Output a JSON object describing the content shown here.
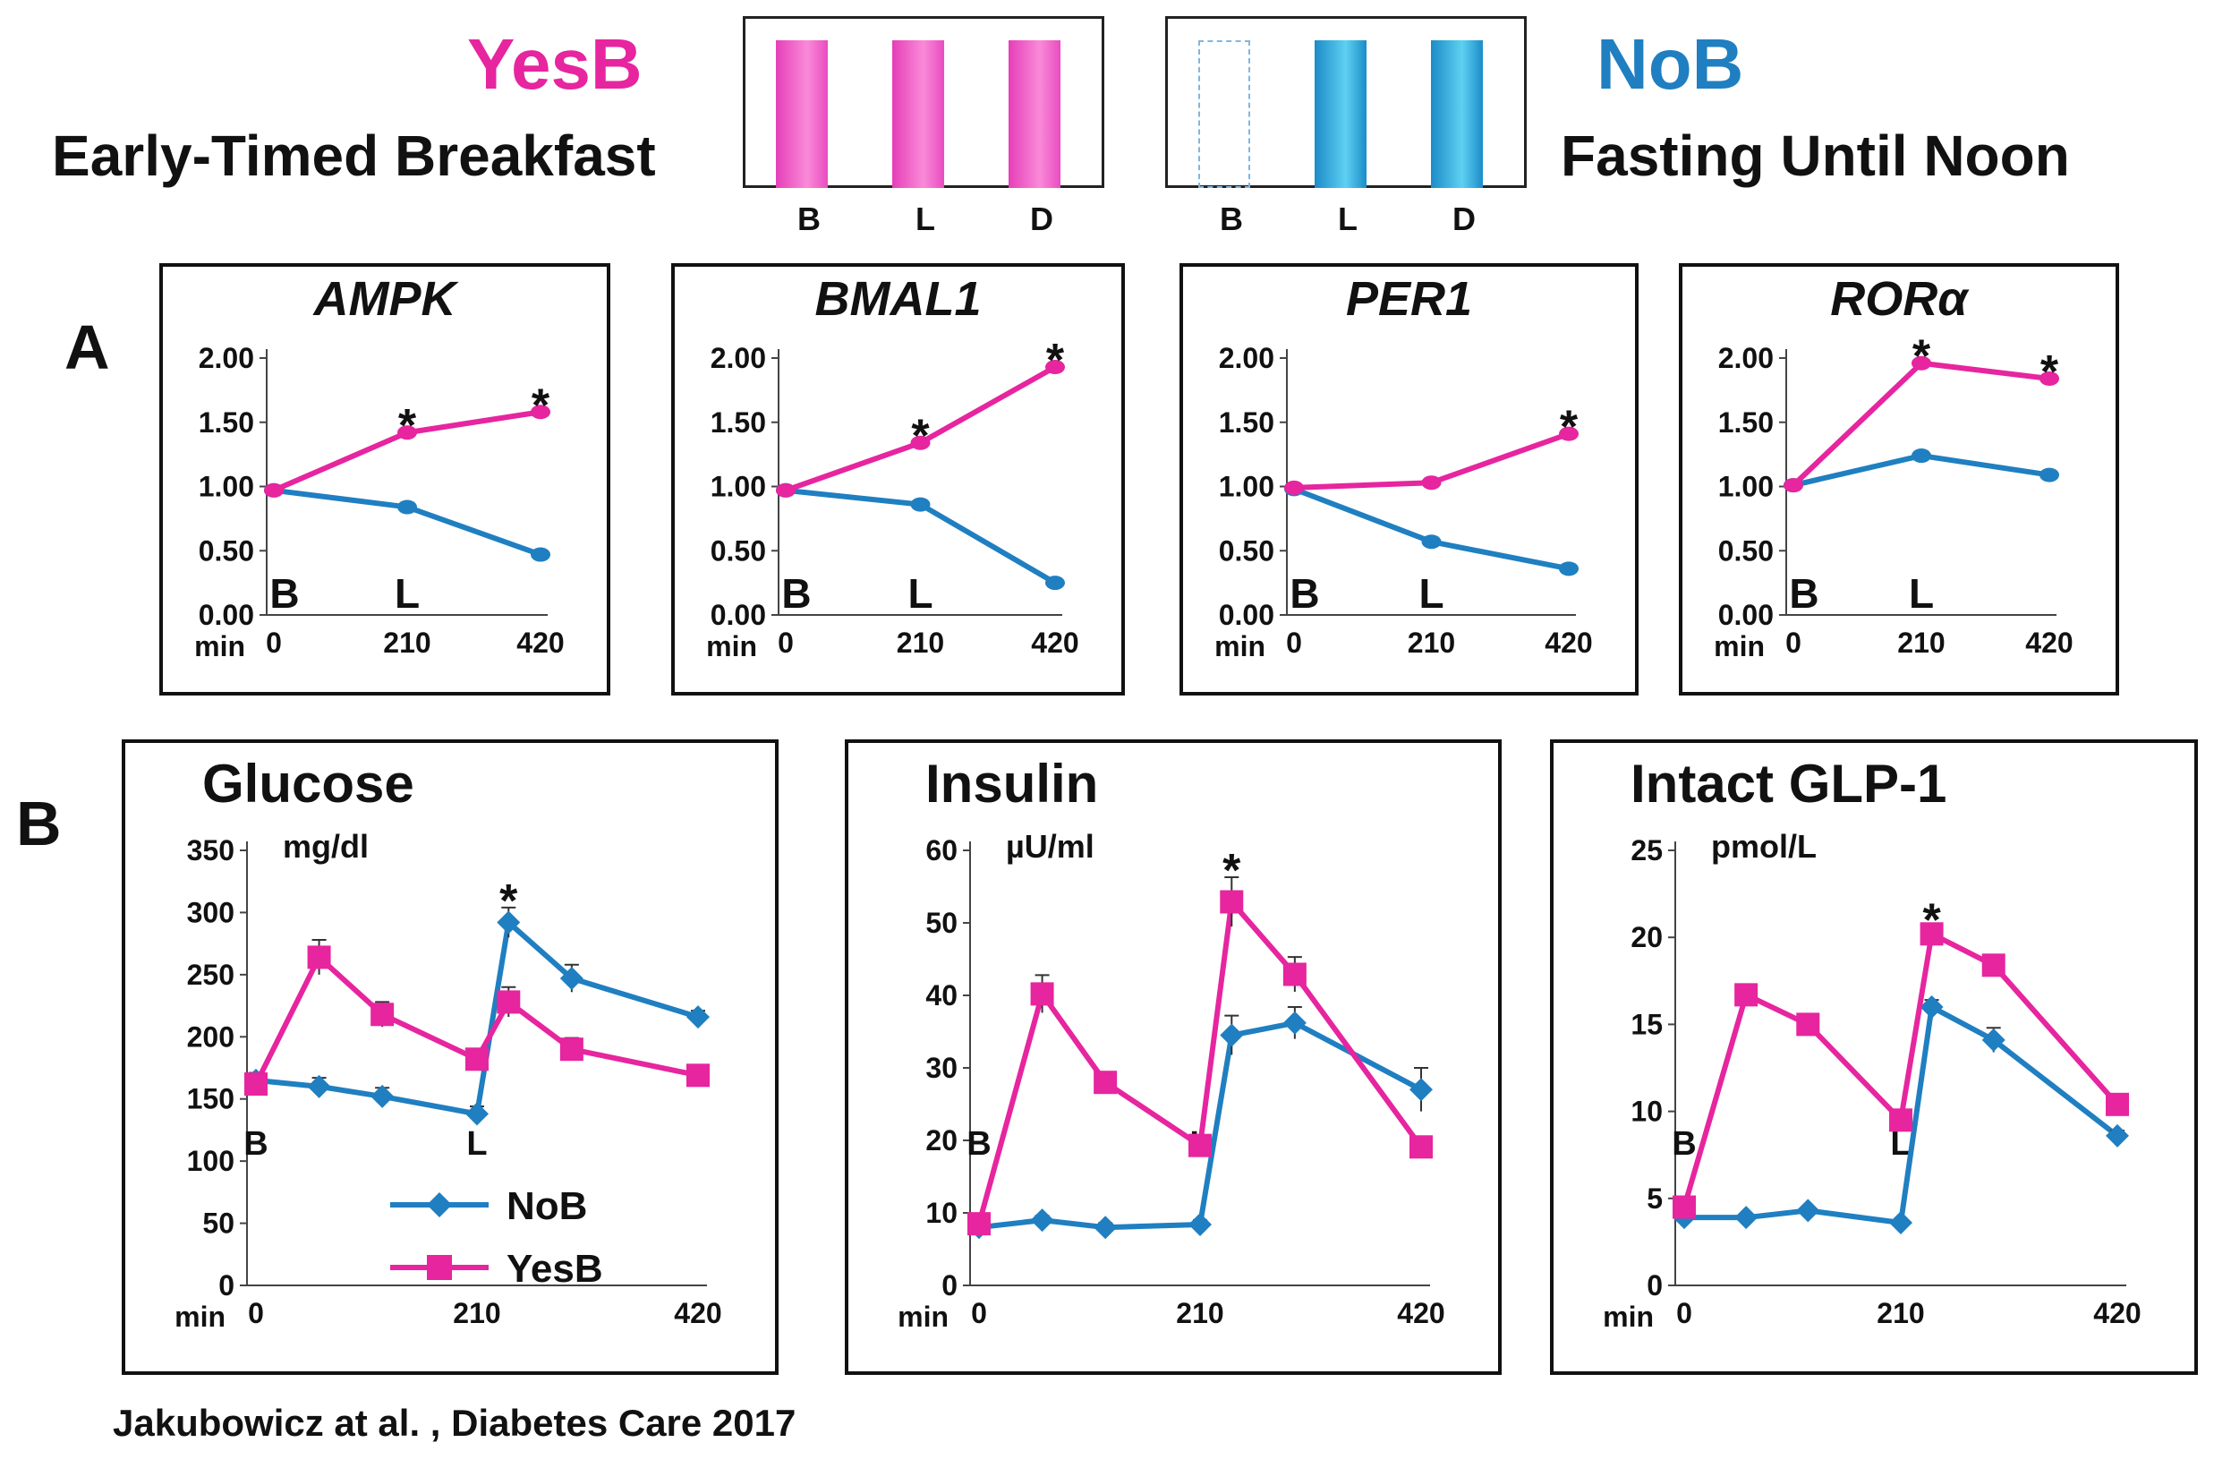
{
  "colors": {
    "yes": "#e6259f",
    "no": "#1f7fc1"
  },
  "legend": {
    "yes_title": "YesB",
    "yes_sub": "Early-Timed Breakfast",
    "no_title": "NoB",
    "no_sub": "Fasting Until  Noon",
    "yes_meals": [
      "B",
      "L",
      "D"
    ],
    "no_meals": [
      "B",
      "L",
      "D"
    ]
  },
  "panel_labels": {
    "a": "A",
    "b": "B"
  },
  "citation": "Jakubowicz  at  al. , Diabetes Care  2017",
  "chart_data": [
    {
      "id": "ampk",
      "type": "line",
      "title": "AMPK",
      "italic": true,
      "xlabel": "min",
      "x": [
        0,
        210,
        420
      ],
      "xticks": [
        "0",
        "210",
        "420"
      ],
      "ylim": [
        0,
        2
      ],
      "yticks": [
        "0.00",
        "0.50",
        "1.00",
        "1.50",
        "2.00"
      ],
      "meal_markers": [
        {
          "label": "B",
          "x": 0
        },
        {
          "label": "L",
          "x": 210
        }
      ],
      "series": [
        {
          "name": "NoB",
          "values": [
            0.97,
            0.84,
            0.47
          ]
        },
        {
          "name": "YesB",
          "values": [
            0.97,
            1.42,
            1.58
          ]
        }
      ],
      "significance": [
        {
          "x": 210,
          "label": "*"
        },
        {
          "x": 420,
          "label": "*"
        }
      ]
    },
    {
      "id": "bmal1",
      "type": "line",
      "title": "BMAL1",
      "italic": true,
      "xlabel": "min",
      "x": [
        0,
        210,
        420
      ],
      "xticks": [
        "0",
        "210",
        "420"
      ],
      "ylim": [
        0,
        2
      ],
      "yticks": [
        "0.00",
        "0.50",
        "1.00",
        "1.50",
        "2.00"
      ],
      "meal_markers": [
        {
          "label": "B",
          "x": 0
        },
        {
          "label": "L",
          "x": 210
        }
      ],
      "series": [
        {
          "name": "NoB",
          "values": [
            0.97,
            0.86,
            0.25
          ]
        },
        {
          "name": "YesB",
          "values": [
            0.97,
            1.34,
            1.93
          ]
        }
      ],
      "significance": [
        {
          "x": 210,
          "label": "*"
        },
        {
          "x": 420,
          "label": "*"
        }
      ]
    },
    {
      "id": "per1",
      "type": "line",
      "title": "PER1",
      "italic": true,
      "xlabel": "min",
      "x": [
        0,
        210,
        420
      ],
      "xticks": [
        "0",
        "210",
        "420"
      ],
      "ylim": [
        0,
        2
      ],
      "yticks": [
        "0.00",
        "0.50",
        "1.00",
        "1.50",
        "2.00"
      ],
      "meal_markers": [
        {
          "label": "B",
          "x": 0
        },
        {
          "label": "L",
          "x": 210
        }
      ],
      "series": [
        {
          "name": "NoB",
          "values": [
            0.98,
            0.57,
            0.36
          ]
        },
        {
          "name": "YesB",
          "values": [
            0.99,
            1.03,
            1.41
          ]
        }
      ],
      "significance": [
        {
          "x": 420,
          "label": "*"
        }
      ]
    },
    {
      "id": "rora",
      "type": "line",
      "title": "RORα",
      "italic": true,
      "xlabel": "min",
      "x": [
        0,
        210,
        420
      ],
      "xticks": [
        "0",
        "210",
        "420"
      ],
      "ylim": [
        0,
        2
      ],
      "yticks": [
        "0.00",
        "0.50",
        "1.00",
        "1.50",
        "2.00"
      ],
      "meal_markers": [
        {
          "label": "B",
          "x": 0
        },
        {
          "label": "L",
          "x": 210
        }
      ],
      "series": [
        {
          "name": "NoB",
          "values": [
            1.01,
            1.24,
            1.09
          ]
        },
        {
          "name": "YesB",
          "values": [
            1.01,
            1.96,
            1.84
          ]
        }
      ],
      "significance": [
        {
          "x": 210,
          "label": "*"
        },
        {
          "x": 420,
          "label": "*"
        }
      ]
    },
    {
      "id": "glucose",
      "type": "line",
      "title": "Glucose",
      "unit": "mg/dl",
      "xlabel": "min",
      "x": [
        0,
        60,
        120,
        210,
        240,
        300,
        420
      ],
      "xticks": [
        "0",
        "210",
        "420"
      ],
      "ylim": [
        0,
        350
      ],
      "yticks": [
        "0",
        "50",
        "100",
        "150",
        "200",
        "250",
        "300",
        "350"
      ],
      "meal_markers": [
        {
          "label": "B",
          "x": 0
        },
        {
          "label": "L",
          "x": 210
        }
      ],
      "series": [
        {
          "name": "NoB",
          "marker": "diamond",
          "values": [
            165,
            160,
            152,
            138,
            292,
            247,
            216
          ],
          "err": [
            6,
            7,
            7,
            6,
            12,
            11,
            5
          ]
        },
        {
          "name": "YesB",
          "marker": "square",
          "values": [
            162,
            264,
            218,
            182,
            228,
            190,
            169
          ],
          "err": [
            6,
            14,
            10,
            7,
            12,
            9,
            5
          ]
        }
      ],
      "significance": [
        {
          "x": 240,
          "label": "*"
        }
      ],
      "legend": [
        {
          "name": "NoB"
        },
        {
          "name": "YesB"
        }
      ]
    },
    {
      "id": "insulin",
      "type": "line",
      "title": "Insulin",
      "unit": "µU/ml",
      "xlabel": "min",
      "x": [
        0,
        60,
        120,
        210,
        240,
        300,
        420
      ],
      "xticks": [
        "0",
        "210",
        "420"
      ],
      "ylim": [
        0,
        60
      ],
      "yticks": [
        "0",
        "10",
        "20",
        "30",
        "40",
        "50",
        "60"
      ],
      "meal_markers": [
        {
          "label": "B",
          "x": 0
        },
        {
          "label": "L",
          "x": 210
        }
      ],
      "series": [
        {
          "name": "NoB",
          "marker": "diamond",
          "values": [
            8,
            9,
            8,
            8.4,
            34.5,
            36.2,
            27
          ],
          "err": [
            0.6,
            0.6,
            0.6,
            0.6,
            2.7,
            2.2,
            3
          ]
        },
        {
          "name": "YesB",
          "marker": "square",
          "values": [
            8.5,
            40.2,
            28,
            19.3,
            52.9,
            42.9,
            19.1
          ],
          "err": [
            0.6,
            2.6,
            1.2,
            0.8,
            3.4,
            2.4,
            0.8
          ]
        }
      ],
      "significance": [
        {
          "x": 240,
          "label": "*"
        }
      ]
    },
    {
      "id": "glp1",
      "type": "line",
      "title": "Intact GLP-1",
      "unit": "pmol/L",
      "xlabel": "min",
      "x": [
        0,
        60,
        120,
        210,
        240,
        300,
        420
      ],
      "xticks": [
        "0",
        "210",
        "420"
      ],
      "ylim": [
        0,
        25
      ],
      "yticks": [
        "0",
        "5",
        "10",
        "15",
        "20",
        "25"
      ],
      "meal_markers": [
        {
          "label": "B",
          "x": 0
        },
        {
          "label": "L",
          "x": 210
        }
      ],
      "series": [
        {
          "name": "NoB",
          "marker": "diamond",
          "values": [
            3.9,
            3.9,
            4.3,
            3.6,
            16,
            14.1,
            8.6
          ],
          "err": [
            0.2,
            0.2,
            0.2,
            0.2,
            0.4,
            0.7,
            0.3
          ]
        },
        {
          "name": "YesB",
          "marker": "square",
          "values": [
            4.5,
            16.7,
            15,
            9.5,
            20.2,
            18.4,
            10.4
          ],
          "err": [
            0.3,
            0.3,
            0.3,
            0.4,
            0.4,
            0.6,
            0.4
          ]
        }
      ],
      "significance": [
        {
          "x": 240,
          "label": "*"
        }
      ]
    }
  ]
}
